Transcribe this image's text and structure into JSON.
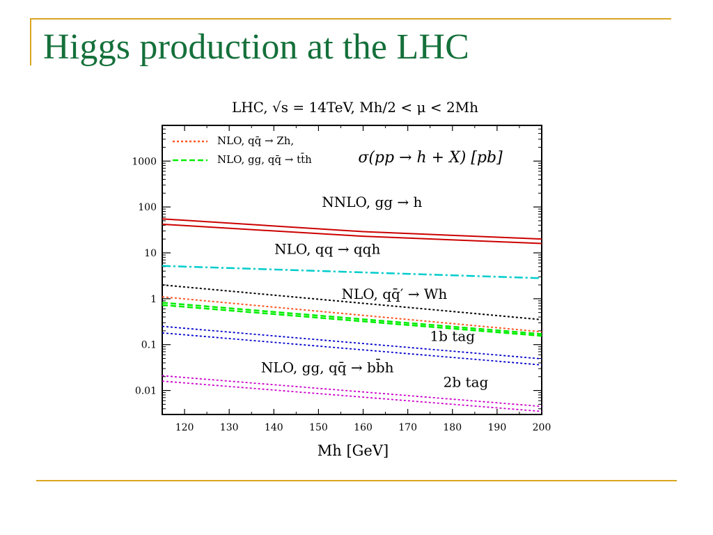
{
  "slide": {
    "title": "Higgs production at the LHC"
  },
  "colors": {
    "title": "#14703a",
    "accent": "#DAA520"
  },
  "chart_data": {
    "type": "line",
    "title": "LHC, √s = 14TeV, Mh/2 < μ < 2Mh",
    "annotation": "σ(pp → h + X) [pb]",
    "xlabel": "Mh [GeV]",
    "ylabel": "",
    "xlim": [
      115,
      200
    ],
    "ylim": [
      0.003,
      6000
    ],
    "y_scale": "log",
    "x_ticks": [
      120,
      130,
      140,
      150,
      160,
      170,
      180,
      190,
      200
    ],
    "y_ticks": [
      {
        "value": 1000,
        "label": "1000"
      },
      {
        "value": 100,
        "label": "100"
      },
      {
        "value": 10,
        "label": "10"
      },
      {
        "value": 1,
        "label": "1"
      },
      {
        "value": 0.1,
        "label": "0.1"
      },
      {
        "value": 0.01,
        "label": "0.01"
      }
    ],
    "legend": {
      "placement": "top-left",
      "entries": [
        {
          "label": "NLO, qq̄ → Zh,",
          "color": "#ff5522",
          "dash": "dotted"
        },
        {
          "label": "NLO, gg, qq̄ → tt̄h",
          "color": "#00ee00",
          "dash": "dashed"
        }
      ]
    },
    "series": [
      {
        "name": "NNLO, gg → h",
        "color": "#cc0000",
        "style": "solid",
        "width": 2,
        "x": [
          115,
          160,
          200
        ],
        "y": [
          55,
          29,
          20
        ]
      },
      {
        "color": "#cc0000",
        "style": "solid",
        "width": 2,
        "x": [
          115,
          160,
          200
        ],
        "y": [
          42,
          23,
          16
        ]
      },
      {
        "name": "NLO, qq → qqh",
        "color": "#00cccc",
        "style": "dashdot",
        "width": 2.5,
        "x": [
          115,
          200
        ],
        "y": [
          5.2,
          2.8
        ]
      },
      {
        "name": "NLO, qq̄′ → Wh",
        "color": "#000000",
        "style": "dotted",
        "width": 2,
        "x": [
          115,
          200
        ],
        "y": [
          2.0,
          0.35
        ]
      },
      {
        "color": "#ff5522",
        "style": "dotted",
        "width": 2,
        "x": [
          115,
          200
        ],
        "y": [
          1.1,
          0.19
        ]
      },
      {
        "color": "#00ee00",
        "style": "dashed",
        "width": 2.5,
        "x": [
          115,
          200
        ],
        "y": [
          0.82,
          0.17
        ]
      },
      {
        "color": "#00ee00",
        "style": "dashed",
        "width": 2.5,
        "x": [
          115,
          200
        ],
        "y": [
          0.73,
          0.155
        ]
      },
      {
        "name": "1b tag",
        "color": "#0000cc",
        "style": "dotted",
        "width": 1.8,
        "x": [
          115,
          200
        ],
        "y": [
          0.25,
          0.049
        ]
      },
      {
        "color": "#0000cc",
        "style": "dotted",
        "width": 1.8,
        "x": [
          115,
          200
        ],
        "y": [
          0.18,
          0.036
        ]
      },
      {
        "name": "2b tag",
        "color": "#cc00cc",
        "style": "dotted",
        "width": 1.8,
        "x": [
          115,
          200
        ],
        "y": [
          0.021,
          0.0045
        ]
      },
      {
        "color": "#cc00cc",
        "style": "dotted",
        "width": 1.8,
        "x": [
          115,
          200
        ],
        "y": [
          0.016,
          0.0035
        ]
      }
    ],
    "curve_labels": [
      {
        "text": "NNLO, gg → h",
        "x": 162,
        "y": 100
      },
      {
        "text": "NLO, qq → qqh",
        "x": 152,
        "y": 9.5
      },
      {
        "text": "NLO, qq̄′ → Wh",
        "x": 167,
        "y": 1.0
      },
      {
        "text": "1b tag",
        "x": 180,
        "y": 0.12
      },
      {
        "text": "NLO, gg, qq̄ → bb̄h",
        "x": 152,
        "y": 0.025
      },
      {
        "text": "2b tag",
        "x": 183,
        "y": 0.012
      }
    ]
  }
}
